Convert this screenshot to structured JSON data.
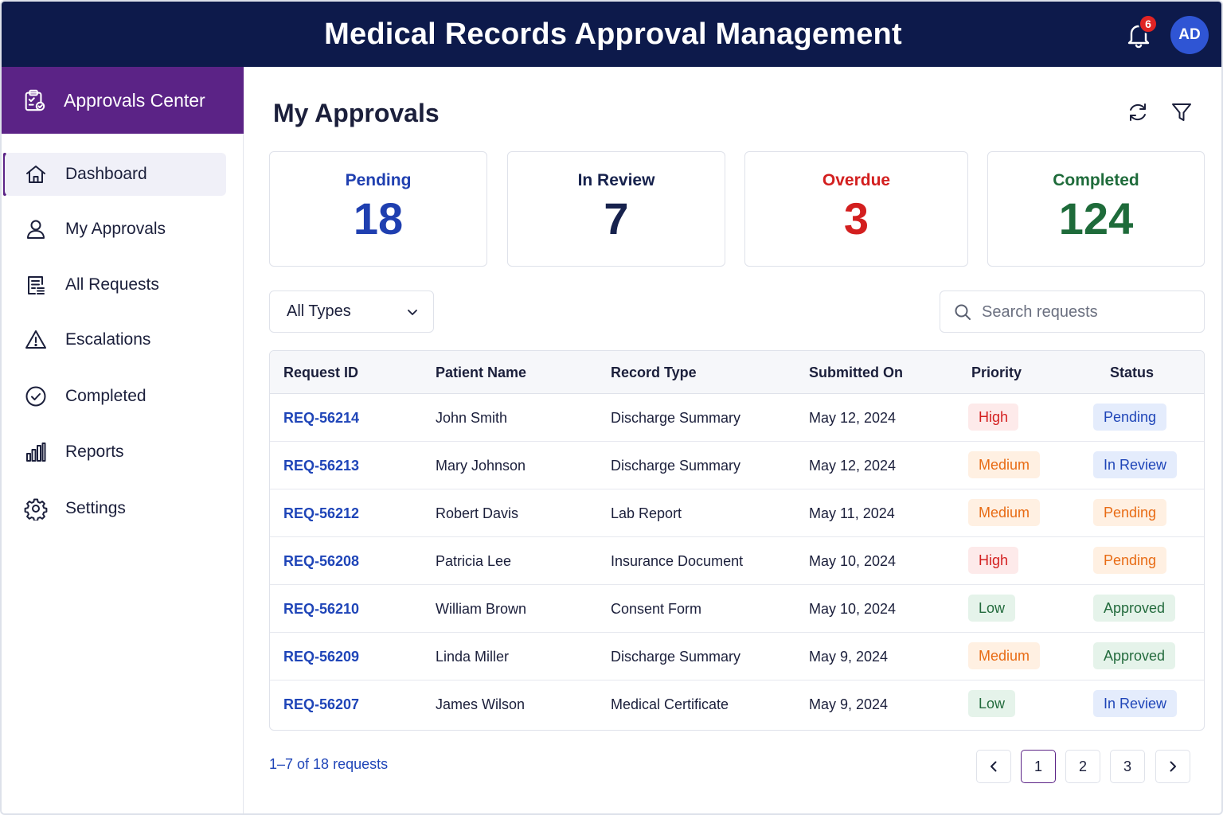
{
  "header": {
    "title": "Medical Records Approval Management",
    "notification_count": "6",
    "avatar_initials": "AD",
    "bell_icon": "bell-icon"
  },
  "sidebar": {
    "title": "Approvals Center",
    "title_icon": "clipboard-check-icon",
    "items": [
      {
        "label": "Dashboard",
        "icon": "home-icon",
        "active": true
      },
      {
        "label": "My Approvals",
        "icon": "user-icon"
      },
      {
        "label": "All Requests",
        "icon": "document-list-icon"
      },
      {
        "label": "Escalations",
        "icon": "warning-icon"
      },
      {
        "label": "Completed",
        "icon": "check-circle-icon"
      },
      {
        "label": "Reports",
        "icon": "bar-chart-icon"
      },
      {
        "label": "Settings",
        "icon": "gear-icon"
      }
    ]
  },
  "main": {
    "title": "My Approvals",
    "tools": {
      "refresh_icon": "refresh-icon",
      "filter_icon": "filter-icon"
    },
    "stats": [
      {
        "label": "Pending",
        "value": "18",
        "color": "#1f3fb0"
      },
      {
        "label": "In Review",
        "value": "7",
        "color": "#17224d"
      },
      {
        "label": "Overdue",
        "value": "3",
        "color": "#d31f1f"
      },
      {
        "label": "Completed",
        "value": "124",
        "color": "#1e6b3a"
      }
    ],
    "type_filter": {
      "selected": "All Types"
    },
    "search": {
      "placeholder": "Search requests",
      "value": ""
    },
    "table": {
      "columns": [
        "Request ID",
        "Patient Name",
        "Record Type",
        "Submitted On",
        "Priority",
        "Status"
      ],
      "rows": [
        {
          "id": "REQ-56214",
          "patient": "John Smith",
          "type": "Discharge Summary",
          "date": "May 12, 2024",
          "priority": "High",
          "status": "Pending"
        },
        {
          "id": "REQ-56213",
          "patient": "Mary Johnson",
          "type": "Discharge Summary",
          "date": "May 12, 2024",
          "priority": "Medium",
          "status": "In Review"
        },
        {
          "id": "REQ-56212",
          "patient": "Robert Davis",
          "type": "Lab Report",
          "date": "May 11, 2024",
          "priority": "Medium",
          "status": "Pending"
        },
        {
          "id": "REQ-56208",
          "patient": "Patricia Lee",
          "type": "Insurance Document",
          "date": "May 10, 2024",
          "priority": "High",
          "status": "Pending"
        },
        {
          "id": "REQ-56210",
          "patient": "William Brown",
          "type": "Consent Form",
          "date": "May 10, 2024",
          "priority": "Low",
          "status": "Approved"
        },
        {
          "id": "REQ-56209",
          "patient": "Linda Miller",
          "type": "Discharge Summary",
          "date": "May 9, 2024",
          "priority": "Medium",
          "status": "Approved"
        },
        {
          "id": "REQ-56207",
          "patient": "James Wilson",
          "type": "Medical Certificate",
          "date": "May 9, 2024",
          "priority": "Low",
          "status": "In Review"
        }
      ]
    },
    "pagination": {
      "summary": "1–7 of 18 requests",
      "pages": [
        "1",
        "2",
        "3"
      ],
      "current": "1"
    }
  }
}
